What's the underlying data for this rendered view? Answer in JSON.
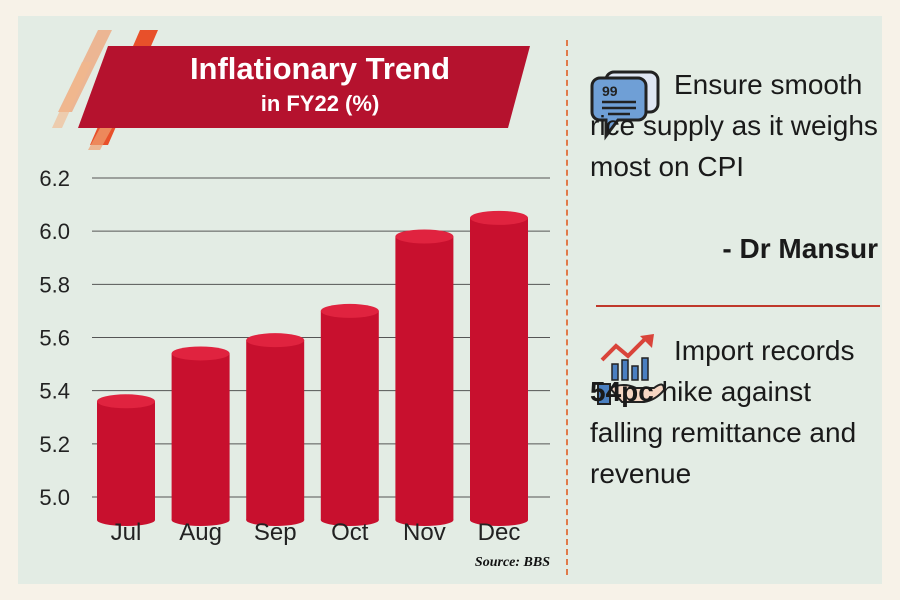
{
  "chart_data": {
    "type": "bar",
    "title": "Inflationary Trend",
    "subtitle": "in FY22 (%)",
    "categories": [
      "Jul",
      "Aug",
      "Sep",
      "Oct",
      "Nov",
      "Dec"
    ],
    "values": [
      5.36,
      5.54,
      5.59,
      5.7,
      5.98,
      6.05
    ],
    "yticks": [
      "5.0",
      "5.2",
      "5.4",
      "5.6",
      "5.8",
      "6.0",
      "6.2"
    ],
    "ylim": [
      5.0,
      6.2
    ],
    "grid": true,
    "bar_color": "#c8102e",
    "source": "Source: BBS"
  },
  "colors": {
    "banner": "#b5122e",
    "background": "#e3ece4",
    "accent": "#e07a4a"
  },
  "quote": {
    "icon": "speech-bubbles-icon",
    "text": "Ensure smooth rice supply as it weighs most on CPI",
    "attribution": "- Dr Mansur"
  },
  "fact": {
    "icon": "hand-growth-chart-icon",
    "text_before": "Import records",
    "highlight": "54pc",
    "text_after": "hike against falling remittance and revenue"
  }
}
